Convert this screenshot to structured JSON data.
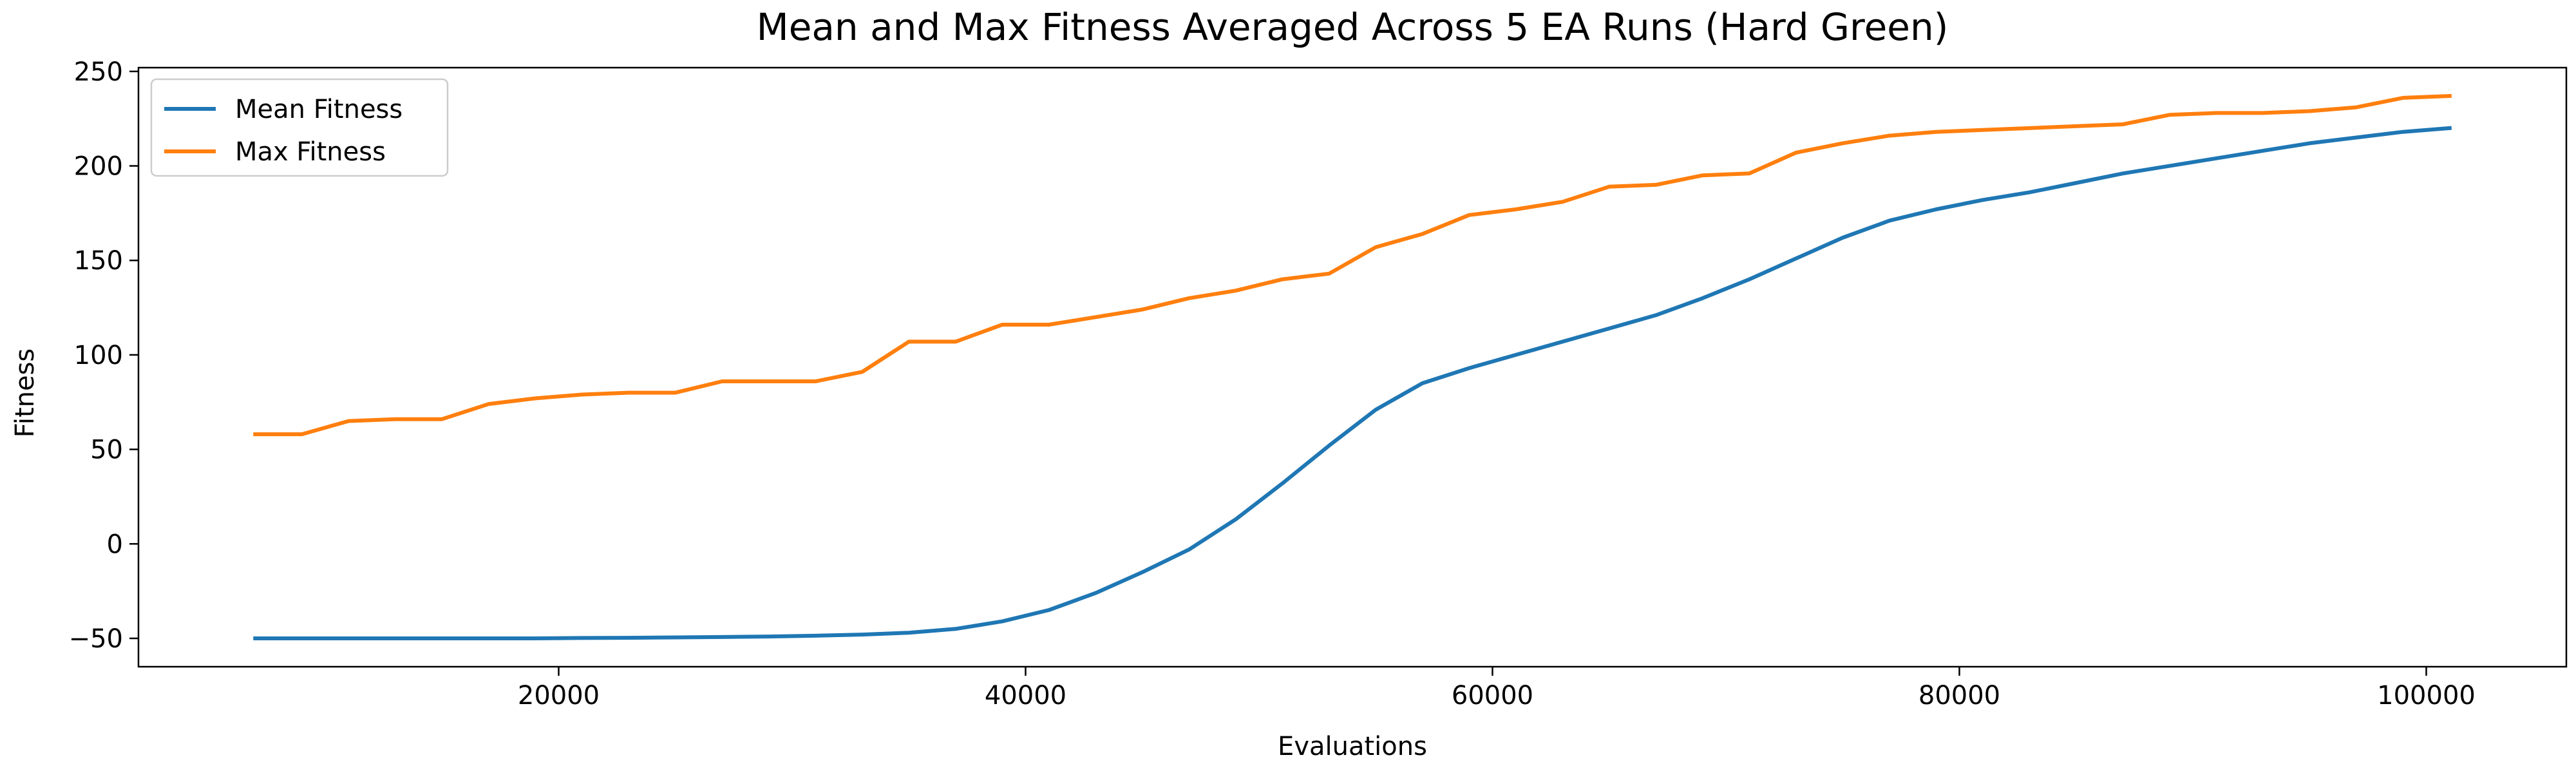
{
  "chart_data": {
    "type": "line",
    "title": "Mean and Max Fitness Averaged Across 5 EA Runs (Hard Green)",
    "xlabel": "Evaluations",
    "ylabel": "Fitness",
    "xlim": [
      2000,
      106000
    ],
    "ylim": [
      -65,
      252
    ],
    "xticks": [
      20000,
      40000,
      60000,
      80000,
      100000
    ],
    "yticks": [
      -50,
      0,
      50,
      100,
      150,
      200,
      250
    ],
    "grid": false,
    "legend_position": "top-left",
    "x": [
      7000,
      9000,
      11000,
      13000,
      15000,
      17000,
      19000,
      21000,
      23000,
      25000,
      27000,
      29000,
      31000,
      33000,
      35000,
      37000,
      39000,
      41000,
      43000,
      45000,
      47000,
      49000,
      51000,
      53000,
      55000,
      57000,
      59000,
      61000,
      63000,
      65000,
      67000,
      69000,
      71000,
      73000,
      75000,
      77000,
      79000,
      81000,
      83000,
      85000,
      87000,
      89000,
      91000,
      93000,
      95000,
      97000,
      99000,
      101000
    ],
    "series": [
      {
        "name": "Mean Fitness",
        "color": "#1f77b4",
        "values": [
          -50,
          -50,
          -50,
          -50,
          -50,
          -50,
          -50,
          -49.8,
          -49.7,
          -49.5,
          -49.3,
          -49,
          -48.6,
          -48,
          -47,
          -45,
          -41,
          -35,
          -26,
          -15,
          -3,
          13,
          32,
          52,
          71,
          85,
          93,
          100,
          107,
          114,
          121,
          130,
          140,
          151,
          162,
          171,
          177,
          182,
          186,
          191,
          196,
          200,
          204,
          208,
          212,
          215,
          218,
          220
        ]
      },
      {
        "name": "Max Fitness",
        "color": "#ff7f0e",
        "values": [
          58,
          58,
          65,
          66,
          66,
          74,
          77,
          79,
          80,
          80,
          86,
          86,
          86,
          91,
          107,
          107,
          116,
          116,
          120,
          124,
          130,
          134,
          140,
          143,
          157,
          164,
          174,
          177,
          181,
          189,
          190,
          195,
          196,
          207,
          212,
          216,
          218,
          219,
          220,
          221,
          222,
          227,
          228,
          228,
          229,
          231,
          236,
          237
        ]
      }
    ]
  }
}
